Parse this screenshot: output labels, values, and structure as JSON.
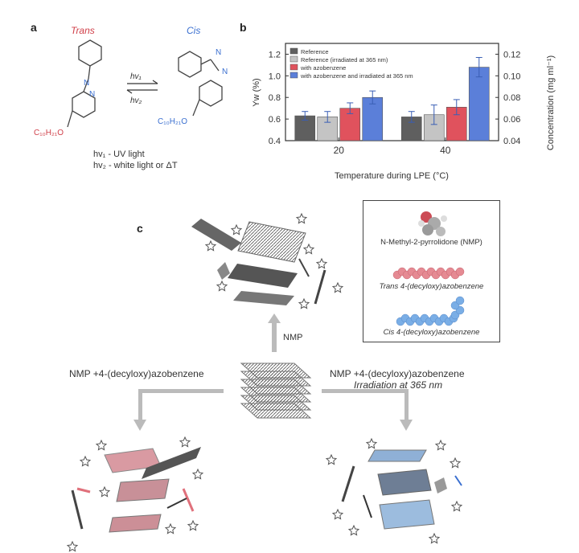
{
  "panel_a": {
    "label": "a",
    "trans_label": "Trans",
    "cis_label": "Cis",
    "arrow_forward": "hv₁",
    "arrow_back": "hv₂",
    "substituent_trans": "C₁₀H₂₁O",
    "substituent_cis": "C₁₀H₂₁O",
    "legend_line1": "hv₁ - UV light",
    "legend_line2": "hv₂ - white light or ΔT",
    "colors": {
      "trans": "#d0404a",
      "cis": "#3a6fd0"
    }
  },
  "panel_b": {
    "label": "b",
    "legend": [
      "Reference",
      "Reference (irradiated at 365 nm)",
      "with azobenzene",
      "with azobenzene and irradiated at 365 nm"
    ]
  },
  "chart_data": {
    "type": "bar",
    "categories": [
      "20",
      "40"
    ],
    "xlabel": "Temperature during LPE (°C)",
    "ylabel": "Yw (%)",
    "y2label": "Concentration (mg ml⁻¹)",
    "ylim": [
      0.4,
      1.3
    ],
    "yticks": [
      "0.4",
      "0.6",
      "0.8",
      "1.0",
      "1.2"
    ],
    "y2lim": [
      0.04,
      0.13
    ],
    "y2ticks": [
      "0.04",
      "0.06",
      "0.08",
      "0.10",
      "0.12"
    ],
    "series": [
      {
        "name": "Reference",
        "values": [
          0.63,
          0.62
        ],
        "errors": [
          0.04,
          0.05
        ],
        "color": "#5f5f5f"
      },
      {
        "name": "Reference (irradiated at 365 nm)",
        "values": [
          0.62,
          0.64
        ],
        "errors": [
          0.05,
          0.09
        ],
        "color": "#c4c4c4"
      },
      {
        "name": "with azobenzene",
        "values": [
          0.7,
          0.71
        ],
        "errors": [
          0.05,
          0.07
        ],
        "color": "#e0525d"
      },
      {
        "name": "with azobenzene and irradiated at 365 nm",
        "values": [
          0.8,
          1.08
        ],
        "errors": [
          0.06,
          0.09
        ],
        "color": "#5b7fd9"
      }
    ],
    "legend_position": "top-left",
    "grid": false
  },
  "panel_c": {
    "label": "c",
    "arrow_up_label": "NMP",
    "left_label": "NMP +4-(decyloxy)azobenzene",
    "right_label": "NMP +4-(decyloxy)azobenzene",
    "right_sublabel": "Irradiation at 365 nm",
    "legend_nmp": "N-Methyl-2-pyrrolidone (NMP)",
    "legend_trans": "Trans 4-(decyloxy)azobenzene",
    "legend_cis": "Cis 4-(decyloxy)azobenzene",
    "colors": {
      "trans_molecule": "#e58a93",
      "cis_molecule": "#7aaee6",
      "graphite": "#777777"
    }
  }
}
